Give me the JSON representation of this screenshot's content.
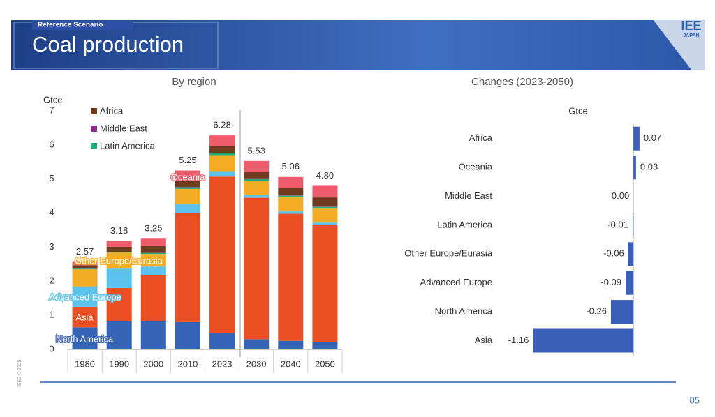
{
  "header": {
    "tag": "Reference Scenario",
    "title": "Coal production",
    "logo_top": "IEE",
    "logo_bottom": "JAPAN"
  },
  "footer": {
    "copyright": "IEEJ © 2025",
    "page": "85"
  },
  "chart_data": [
    {
      "type": "stacked-bar",
      "title": "By region",
      "y_label": "Gtce",
      "categories": [
        "1980",
        "1990",
        "2000",
        "2010",
        "2023",
        "2030",
        "2040",
        "2050"
      ],
      "ylim": [
        0,
        7
      ],
      "yticks": [
        0,
        1,
        2,
        3,
        4,
        5,
        6,
        7
      ],
      "series": [
        {
          "name": "North America",
          "color": "#3563b5",
          "values": [
            0.65,
            0.82,
            0.82,
            0.8,
            0.48,
            0.3,
            0.25,
            0.22
          ]
        },
        {
          "name": "Asia",
          "color": "#ea4e22",
          "values": [
            0.6,
            0.98,
            1.35,
            3.2,
            4.59,
            4.15,
            3.73,
            3.43
          ]
        },
        {
          "name": "Advanced Europe",
          "color": "#5bc3ee",
          "values": [
            0.6,
            0.57,
            0.26,
            0.26,
            0.16,
            0.08,
            0.07,
            0.07
          ]
        },
        {
          "name": "Other Europe/Eurasia",
          "color": "#f4ac25",
          "values": [
            0.5,
            0.47,
            0.37,
            0.45,
            0.47,
            0.42,
            0.41,
            0.41
          ]
        },
        {
          "name": "Latin America",
          "color": "#1fae7a",
          "values": [
            0.02,
            0.02,
            0.03,
            0.05,
            0.06,
            0.06,
            0.05,
            0.05
          ],
          "legend": true
        },
        {
          "name": "Middle East",
          "color": "#8e2a8f",
          "values": [
            0.0,
            0.0,
            0.0,
            0.01,
            0.01,
            0.01,
            0.01,
            0.01
          ],
          "legend": true
        },
        {
          "name": "Africa",
          "color": "#6f3a1e",
          "values": [
            0.1,
            0.15,
            0.2,
            0.18,
            0.2,
            0.2,
            0.22,
            0.27
          ],
          "legend": true
        },
        {
          "name": "Oceania",
          "color": "#ee5c6b",
          "values": [
            0.1,
            0.17,
            0.22,
            0.3,
            0.31,
            0.31,
            0.32,
            0.34
          ]
        }
      ],
      "totals": {
        "values": [
          2.57,
          3.18,
          3.25,
          5.25,
          6.28,
          5.53,
          5.06,
          4.8
        ],
        "value_labels": [
          "2.57",
          "3.18",
          "3.25",
          "5.25",
          "6.28",
          "5.53",
          "5.06",
          "4.80"
        ]
      }
    },
    {
      "type": "hbar",
      "title": "Changes (2023-2050)",
      "x_label": "Gtce",
      "color": "#3a5fb8",
      "categories": [
        "Africa",
        "Oceania",
        "Middle East",
        "Latin America",
        "Other Europe/Eurasia",
        "Advanced Europe",
        "North America",
        "Asia"
      ],
      "values": [
        0.07,
        0.03,
        0.0,
        -0.01,
        -0.06,
        -0.09,
        -0.26,
        -1.16
      ],
      "value_labels": [
        "0.07",
        "0.03",
        "0.00",
        "-0.01",
        "-0.06",
        "-0.09",
        "-0.26",
        "-1.16"
      ],
      "xlim": [
        -1.3,
        0.1
      ]
    }
  ]
}
